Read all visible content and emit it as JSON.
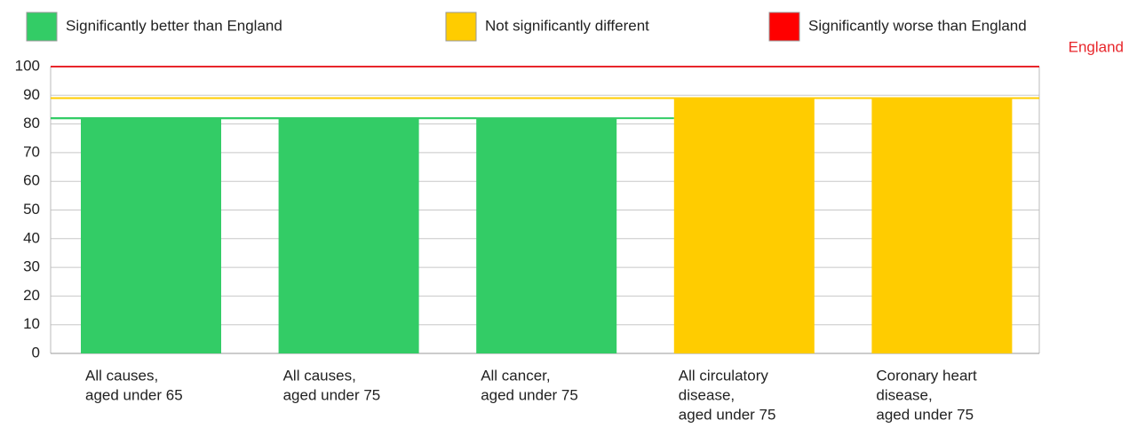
{
  "chart_data": {
    "type": "bar",
    "legend": [
      {
        "label": "Significantly better than England",
        "color": "#33cc66"
      },
      {
        "label": "Not significantly different",
        "color": "#ffcc00"
      },
      {
        "label": "Significantly worse than England",
        "color": "#ff0000"
      }
    ],
    "reference": {
      "label": "England",
      "value": 100,
      "color": "#e8262b"
    },
    "categories": [
      [
        "All causes,",
        "aged under 65"
      ],
      [
        "All causes,",
        "aged under 75"
      ],
      [
        "All cancer,",
        "aged under 75"
      ],
      [
        "All circulatory",
        "disease,",
        "aged under 75"
      ],
      [
        "Coronary heart",
        "disease,",
        "aged under 75"
      ]
    ],
    "values": [
      82,
      82,
      82,
      89,
      89
    ],
    "colors": [
      "#33cc66",
      "#33cc66",
      "#33cc66",
      "#ffcc00",
      "#ffcc00"
    ],
    "ylim": [
      0,
      100
    ],
    "yticks": [
      0,
      10,
      20,
      30,
      40,
      50,
      60,
      70,
      80,
      90,
      100
    ],
    "grid": true
  }
}
